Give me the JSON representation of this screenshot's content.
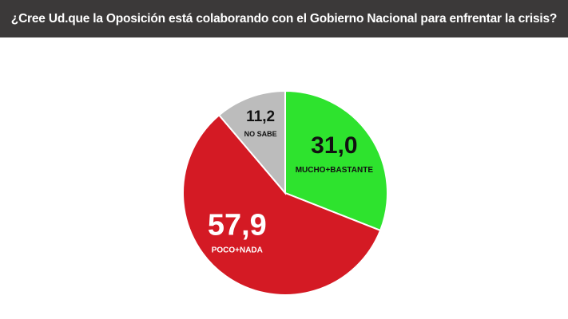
{
  "header": {
    "title": "¿Cree Ud.que la Oposición está colaborando con el Gobierno Nacional para enfrentar la crisis?"
  },
  "chart_data": {
    "type": "pie",
    "title": "¿Cree Ud.que la Oposición está colaborando con el Gobierno Nacional para enfrentar la crisis?",
    "slices": [
      {
        "label": "MUCHO+BASTANTE",
        "value": 31.0,
        "display": "31,0",
        "color": "#2ee32e",
        "text_color": "#111111"
      },
      {
        "label": "POCO+NADA",
        "value": 57.9,
        "display": "57,9",
        "color": "#d41a24",
        "text_color": "#ffffff"
      },
      {
        "label": "NO SABE",
        "value": 11.2,
        "display": "11,2",
        "color": "#bcbcbc",
        "text_color": "#111111"
      }
    ],
    "start_angle_deg": 0,
    "direction": "clockwise"
  }
}
